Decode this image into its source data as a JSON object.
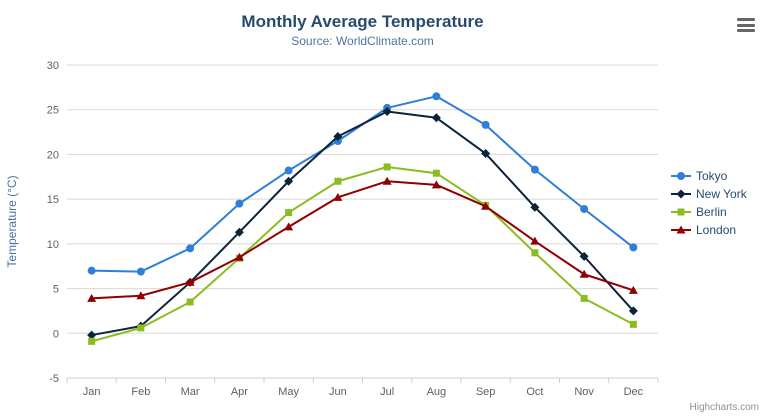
{
  "title": "Monthly Average Temperature",
  "subtitle": "Source: WorldClimate.com",
  "credits": "Highcharts.com",
  "chart_data": {
    "type": "line",
    "categories": [
      "Jan",
      "Feb",
      "Mar",
      "Apr",
      "May",
      "Jun",
      "Jul",
      "Aug",
      "Sep",
      "Oct",
      "Nov",
      "Dec"
    ],
    "series": [
      {
        "name": "Tokyo",
        "color": "#2f7ed8",
        "marker": "circle",
        "values": [
          7.0,
          6.9,
          9.5,
          14.5,
          18.2,
          21.5,
          25.2,
          26.5,
          23.3,
          18.3,
          13.9,
          9.6
        ]
      },
      {
        "name": "New York",
        "color": "#0d233a",
        "marker": "diamond",
        "values": [
          -0.2,
          0.8,
          5.7,
          11.3,
          17.0,
          22.0,
          24.8,
          24.1,
          20.1,
          14.1,
          8.6,
          2.5
        ]
      },
      {
        "name": "Berlin",
        "color": "#8bbc21",
        "marker": "square",
        "values": [
          -0.9,
          0.6,
          3.5,
          8.4,
          13.5,
          17.0,
          18.6,
          17.9,
          14.3,
          9.0,
          3.9,
          1.0
        ]
      },
      {
        "name": "London",
        "color": "#910000",
        "marker": "triangle",
        "values": [
          3.9,
          4.2,
          5.7,
          8.5,
          11.9,
          15.2,
          17.0,
          16.6,
          14.2,
          10.3,
          6.6,
          4.8
        ]
      }
    ],
    "title": "Monthly Average Temperature",
    "subtitle": "Source: WorldClimate.com",
    "xlabel": "",
    "ylabel": "Temperature (°C)",
    "ylim": [
      -5,
      30
    ],
    "yticks": [
      -5,
      0,
      5,
      10,
      15,
      20,
      25,
      30
    ],
    "grid": true,
    "legend_position": "right"
  },
  "colors": {
    "grid": "#d8d8d8",
    "axis_line": "#c0d0e0",
    "axis_label": "#606060",
    "y_axis_title": "#4572a7"
  }
}
